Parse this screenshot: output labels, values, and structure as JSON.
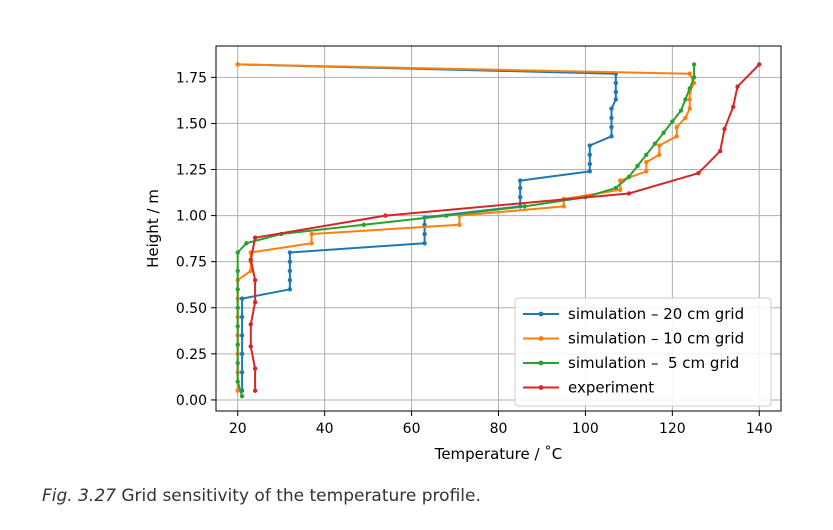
{
  "caption": {
    "label": "Fig. 3.27",
    "text": "Grid sensitivity of the temperature profile."
  },
  "chart_data": {
    "type": "line",
    "title": "",
    "xlabel": "Temperature / ˚C",
    "ylabel": "Height / m",
    "xlim": [
      15,
      145
    ],
    "ylim": [
      -0.06,
      1.92
    ],
    "xticks": [
      20,
      40,
      60,
      80,
      100,
      120,
      140
    ],
    "yticks": [
      0.0,
      0.25,
      0.5,
      0.75,
      1.0,
      1.25,
      1.5,
      1.75
    ],
    "ytick_labels": [
      "0.00",
      "0.25",
      "0.50",
      "0.75",
      "1.00",
      "1.25",
      "1.50",
      "1.75"
    ],
    "grid": true,
    "legend_position": "lower-right",
    "series": [
      {
        "name": "simulation – 20 cm grid",
        "color": "#1f77b4",
        "points": [
          [
            21,
            0.05
          ],
          [
            21,
            0.15
          ],
          [
            21,
            0.25
          ],
          [
            21,
            0.35
          ],
          [
            21,
            0.45
          ],
          [
            21,
            0.55
          ],
          [
            32,
            0.6
          ],
          [
            32,
            0.65
          ],
          [
            32,
            0.7
          ],
          [
            32,
            0.75
          ],
          [
            32,
            0.8
          ],
          [
            63,
            0.85
          ],
          [
            63,
            0.9
          ],
          [
            63,
            0.95
          ],
          [
            63,
            0.99
          ],
          [
            85,
            1.05
          ],
          [
            85,
            1.1
          ],
          [
            85,
            1.15
          ],
          [
            85,
            1.19
          ],
          [
            101,
            1.24
          ],
          [
            101,
            1.28
          ],
          [
            101,
            1.33
          ],
          [
            101,
            1.38
          ],
          [
            106,
            1.43
          ],
          [
            106,
            1.48
          ],
          [
            106,
            1.53
          ],
          [
            106,
            1.58
          ],
          [
            107,
            1.63
          ],
          [
            107,
            1.67
          ],
          [
            107,
            1.72
          ],
          [
            107,
            1.77
          ],
          [
            20,
            1.82
          ]
        ]
      },
      {
        "name": "simulation – 10 cm grid",
        "color": "#ff7f0e",
        "points": [
          [
            20,
            0.05
          ],
          [
            20,
            0.15
          ],
          [
            20,
            0.25
          ],
          [
            20,
            0.35
          ],
          [
            20,
            0.45
          ],
          [
            20,
            0.55
          ],
          [
            20,
            0.65
          ],
          [
            23,
            0.7
          ],
          [
            23,
            0.75
          ],
          [
            23,
            0.8
          ],
          [
            37,
            0.85
          ],
          [
            37,
            0.9
          ],
          [
            71,
            0.95
          ],
          [
            71,
            1.0
          ],
          [
            95,
            1.05
          ],
          [
            95,
            1.09
          ],
          [
            108,
            1.14
          ],
          [
            108,
            1.19
          ],
          [
            114,
            1.24
          ],
          [
            114,
            1.29
          ],
          [
            117,
            1.33
          ],
          [
            117,
            1.38
          ],
          [
            121,
            1.43
          ],
          [
            121,
            1.48
          ],
          [
            123,
            1.53
          ],
          [
            124,
            1.58
          ],
          [
            124,
            1.63
          ],
          [
            124,
            1.67
          ],
          [
            125,
            1.72
          ],
          [
            124,
            1.77
          ],
          [
            20,
            1.82
          ]
        ]
      },
      {
        "name": "simulation –  5 cm grid",
        "color": "#2ca02c",
        "points": [
          [
            21,
            0.02
          ],
          [
            20,
            0.1
          ],
          [
            20,
            0.2
          ],
          [
            20,
            0.3
          ],
          [
            20,
            0.4
          ],
          [
            20,
            0.5
          ],
          [
            20,
            0.6
          ],
          [
            20,
            0.7
          ],
          [
            20,
            0.8
          ],
          [
            22,
            0.85
          ],
          [
            30,
            0.9
          ],
          [
            49,
            0.95
          ],
          [
            68,
            1.0
          ],
          [
            86,
            1.05
          ],
          [
            100,
            1.1
          ],
          [
            107,
            1.15
          ],
          [
            110,
            1.21
          ],
          [
            112,
            1.27
          ],
          [
            114,
            1.33
          ],
          [
            116,
            1.39
          ],
          [
            118,
            1.45
          ],
          [
            120,
            1.51
          ],
          [
            122,
            1.57
          ],
          [
            123,
            1.63
          ],
          [
            124,
            1.69
          ],
          [
            125,
            1.75
          ],
          [
            125,
            1.82
          ]
        ]
      },
      {
        "name": "experiment",
        "color": "#d62728",
        "points": [
          [
            24,
            0.05
          ],
          [
            24,
            0.17
          ],
          [
            23,
            0.29
          ],
          [
            23,
            0.41
          ],
          [
            24,
            0.53
          ],
          [
            24,
            0.65
          ],
          [
            23,
            0.76
          ],
          [
            24,
            0.88
          ],
          [
            54,
            1.0
          ],
          [
            110,
            1.12
          ],
          [
            126,
            1.23
          ],
          [
            131,
            1.35
          ],
          [
            132,
            1.47
          ],
          [
            134,
            1.59
          ],
          [
            135,
            1.7
          ],
          [
            140,
            1.82
          ]
        ]
      }
    ]
  }
}
